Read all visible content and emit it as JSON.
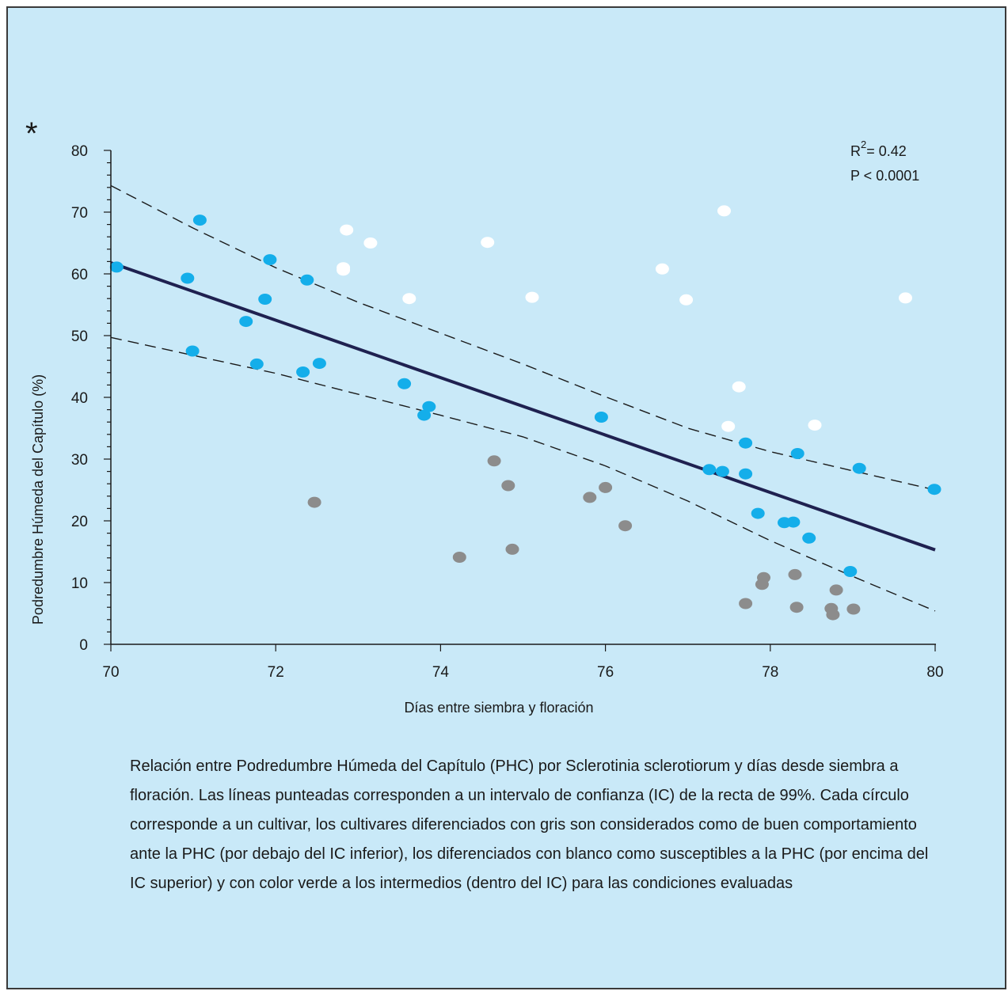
{
  "marker_symbol": "*",
  "caption": "Relación entre Podredumbre Húmeda del Capítulo (PHC) por Sclerotinia sclerotiorum y días desde siembra a floración. Las líneas punteadas corresponden a un intervalo de confianza (IC) de la recta de 99%. Cada círculo corresponde a un cultivar, los cultivares diferenciados con gris son considerados como de buen comportamiento ante la PHC (por debajo del IC inferior), los diferenciados con blanco como susceptibles a la PHC (por encima del IC superior) y con color verde a los intermedios (dentro del IC) para las condiciones evaluadas",
  "colors": {
    "background": "#c9e9f8",
    "intermedios": "#14aeea",
    "susceptibles": "#ffffff",
    "buen_comportamiento": "#8c8c8c",
    "regression": "#1f2150"
  },
  "chart_data": {
    "type": "scatter",
    "xlabel": "Días entre siembra y floración",
    "ylabel": "Podredumbre Húmeda del Capítulo (%)",
    "xlim": [
      70,
      80
    ],
    "ylim": [
      0,
      80
    ],
    "xticks": [
      "70",
      "72",
      "74",
      "76",
      "78",
      "80"
    ],
    "yticks": [
      "0",
      "10",
      "20",
      "30",
      "40",
      "50",
      "60",
      "70",
      "80"
    ],
    "grid": false,
    "annotations": {
      "r2_prefix": "R",
      "r2_sup": "2",
      "r2_value": "= 0.42",
      "p_value": "P < 0.0001"
    },
    "regression_line": {
      "x": [
        70,
        80
      ],
      "y": [
        61.8,
        15.3
      ]
    },
    "ci_upper": {
      "x": [
        70,
        71,
        72,
        73,
        74,
        75,
        76,
        77,
        78,
        79,
        80
      ],
      "y": [
        74.3,
        67.4,
        61.0,
        55.4,
        50.4,
        45.4,
        40.1,
        35.0,
        31.2,
        28.1,
        25.0
      ]
    },
    "ci_lower": {
      "x": [
        70,
        71,
        72,
        73,
        74,
        75,
        76,
        77,
        78,
        79,
        80
      ],
      "y": [
        49.7,
        46.8,
        43.9,
        40.5,
        37.1,
        33.6,
        28.9,
        23.2,
        16.8,
        11.0,
        5.4
      ]
    },
    "series": [
      {
        "color": "#14aeea",
        "x": [
          70.07,
          70.93,
          70.99,
          71.08,
          71.64,
          71.77,
          71.87,
          71.93,
          72.33,
          72.38,
          72.53,
          73.56,
          73.8,
          73.86,
          75.95,
          77.26,
          77.42,
          77.7,
          77.7,
          77.85,
          78.17,
          78.28,
          78.33,
          78.47,
          78.97,
          79.08,
          79.99
        ],
        "y": [
          61.1,
          59.3,
          47.5,
          68.7,
          52.3,
          45.4,
          55.9,
          62.3,
          44.1,
          59.0,
          45.5,
          42.2,
          37.1,
          38.5,
          36.8,
          28.3,
          28.0,
          32.6,
          27.6,
          21.2,
          19.7,
          19.8,
          30.9,
          17.2,
          11.8,
          28.5,
          25.1
        ]
      },
      {
        "color": "#ffffff",
        "x": [
          72.82,
          72.82,
          72.86,
          73.15,
          73.62,
          74.57,
          75.11,
          76.69,
          76.98,
          77.44,
          77.49,
          77.62,
          78.54,
          79.64
        ],
        "y": [
          61.0,
          60.6,
          67.1,
          65.0,
          56.0,
          65.1,
          56.2,
          60.8,
          55.8,
          70.2,
          35.3,
          41.7,
          35.5,
          56.1
        ]
      },
      {
        "color": "#8c8c8c",
        "x": [
          72.47,
          74.23,
          74.65,
          74.82,
          74.87,
          75.81,
          76.0,
          76.24,
          77.7,
          77.9,
          77.92,
          78.3,
          78.32,
          78.74,
          78.76,
          78.8,
          79.01
        ],
        "y": [
          23.0,
          14.1,
          29.7,
          25.7,
          15.4,
          23.8,
          25.4,
          19.2,
          6.6,
          9.7,
          10.8,
          11.3,
          6.0,
          5.8,
          4.8,
          8.8,
          5.7
        ]
      }
    ]
  }
}
